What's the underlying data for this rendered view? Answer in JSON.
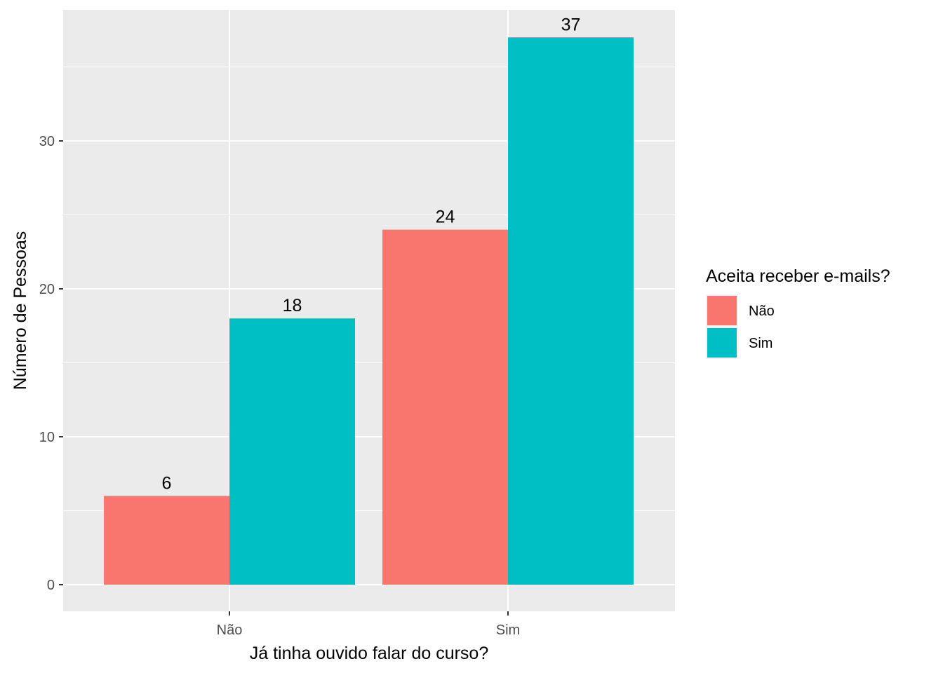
{
  "chart_data": {
    "type": "bar",
    "categories": [
      "Não",
      "Sim"
    ],
    "series": [
      {
        "name": "Não",
        "color": "#F8766D",
        "values": [
          6,
          24
        ]
      },
      {
        "name": "Sim",
        "color": "#00BFC4",
        "values": [
          18,
          37
        ]
      }
    ],
    "xlabel": "Já tinha ouvido falar do curso?",
    "ylabel": "Número de Pessoas",
    "legend_title": "Aceita receber e-mails?",
    "legend_position": "right",
    "ylim": [
      0,
      37
    ],
    "y_ticks": [
      0,
      10,
      20,
      30
    ],
    "grid": true,
    "panel_background": "#EBEBEB",
    "grid_color": "#FFFFFF"
  }
}
